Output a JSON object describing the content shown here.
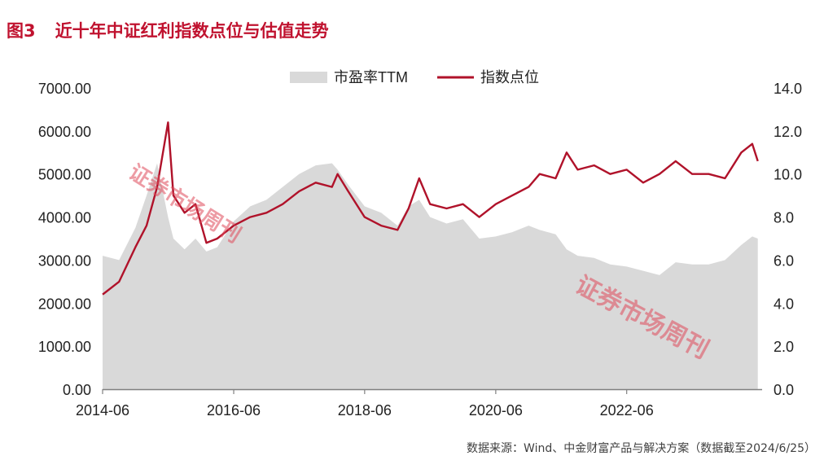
{
  "header": {
    "fig_no": "图3",
    "title": "近十年中证红利指数点位与估值走势"
  },
  "source": "数据来源：Wind、中金财富产品与解决方案（数据截至2024/6/25）",
  "watermarks": [
    "证券市场周刊",
    "证券市场周刊"
  ],
  "colors": {
    "title": "#c0122f",
    "pe_area": "#d9d9d9",
    "index_line": "#b0122a"
  },
  "chart_data": {
    "type": "area+line",
    "legend_position": "top-center",
    "grid": false,
    "x_ticks": [
      "2014-06",
      "2016-06",
      "2018-06",
      "2020-06",
      "2022-06"
    ],
    "y_left": {
      "ylim": [
        0,
        7000
      ],
      "ticks": [
        "0.00",
        "1000.00",
        "2000.00",
        "3000.00",
        "4000.00",
        "5000.00",
        "6000.00",
        "7000.00"
      ]
    },
    "y_right": {
      "ylim": [
        0,
        14
      ],
      "ticks": [
        "0.0",
        "2.0",
        "4.0",
        "6.0",
        "8.0",
        "10.0",
        "12.0",
        "14.0"
      ]
    },
    "x": [
      "2014-06",
      "2014-09",
      "2014-12",
      "2015-02",
      "2015-04",
      "2015-06",
      "2015-07",
      "2015-09",
      "2015-11",
      "2016-01",
      "2016-03",
      "2016-06",
      "2016-09",
      "2016-12",
      "2017-03",
      "2017-06",
      "2017-09",
      "2017-12",
      "2018-01",
      "2018-03",
      "2018-06",
      "2018-09",
      "2018-12",
      "2019-02",
      "2019-04",
      "2019-06",
      "2019-09",
      "2019-12",
      "2020-03",
      "2020-06",
      "2020-09",
      "2020-12",
      "2021-02",
      "2021-05",
      "2021-07",
      "2021-09",
      "2021-12",
      "2022-03",
      "2022-06",
      "2022-09",
      "2022-12",
      "2023-03",
      "2023-06",
      "2023-09",
      "2023-12",
      "2024-03",
      "2024-05",
      "2024-06"
    ],
    "series": [
      {
        "name": "市盈率TTM",
        "axis": "right",
        "kind": "area",
        "values": [
          6.2,
          6.0,
          7.5,
          9.0,
          10.5,
          8.0,
          7.0,
          6.5,
          7.0,
          6.4,
          6.6,
          7.8,
          8.5,
          8.8,
          9.4,
          10.0,
          10.4,
          10.5,
          10.2,
          9.5,
          8.5,
          8.2,
          7.6,
          8.5,
          8.8,
          8.0,
          7.7,
          7.9,
          7.0,
          7.1,
          7.3,
          7.6,
          7.4,
          7.2,
          6.5,
          6.2,
          6.1,
          5.8,
          5.7,
          5.5,
          5.3,
          5.9,
          5.8,
          5.8,
          6.0,
          6.7,
          7.1,
          7.0
        ]
      },
      {
        "name": "指数点位",
        "axis": "left",
        "kind": "line",
        "values": [
          2200,
          2500,
          3300,
          3800,
          4700,
          6200,
          4500,
          4100,
          4300,
          3400,
          3500,
          3800,
          4000,
          4100,
          4300,
          4600,
          4800,
          4700,
          5000,
          4600,
          4000,
          3800,
          3700,
          4200,
          4900,
          4300,
          4200,
          4300,
          4000,
          4300,
          4500,
          4700,
          5000,
          4900,
          5500,
          5100,
          5200,
          5000,
          5100,
          4800,
          5000,
          5300,
          5000,
          5000,
          4900,
          5500,
          5700,
          5300
        ]
      }
    ]
  }
}
